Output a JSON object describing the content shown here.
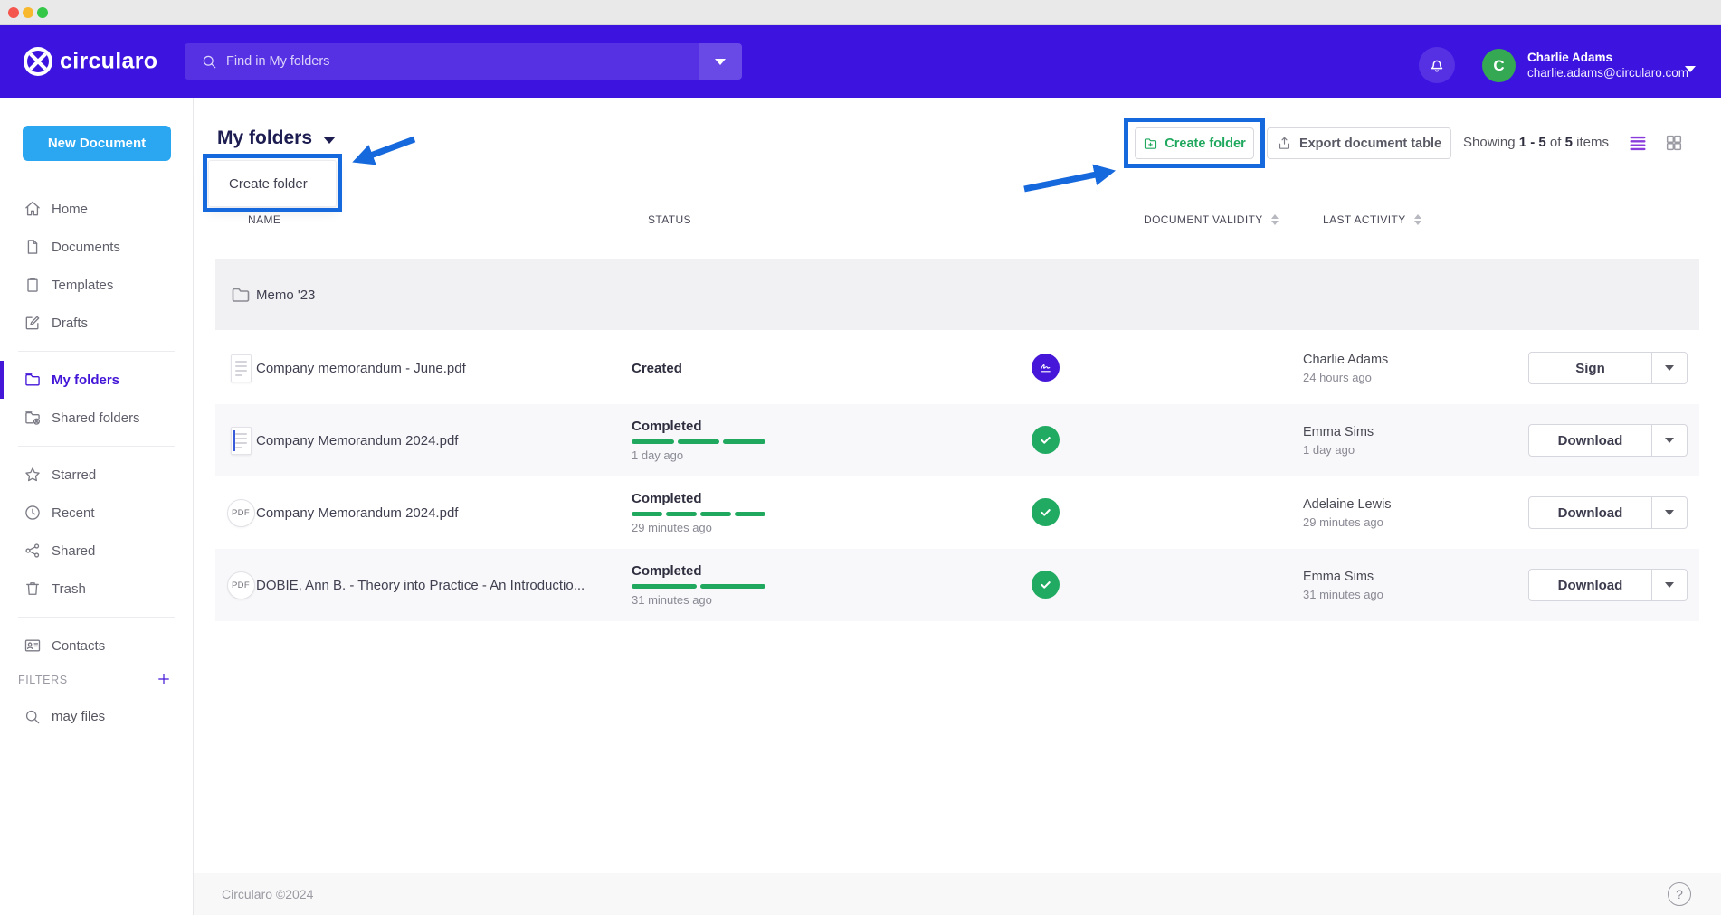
{
  "header": {
    "brand": "circularo",
    "search": {
      "placeholder": "Find in My folders"
    },
    "user": {
      "initial": "C",
      "name": "Charlie Adams",
      "email": "charlie.adams@circularo.com"
    }
  },
  "sidebar": {
    "new_document_label": "New Document",
    "items": [
      {
        "label": "Home",
        "icon": "home",
        "active": false,
        "divider_after": false
      },
      {
        "label": "Documents",
        "icon": "document",
        "active": false,
        "divider_after": false
      },
      {
        "label": "Templates",
        "icon": "template",
        "active": false,
        "divider_after": false
      },
      {
        "label": "Drafts",
        "icon": "draft",
        "active": false,
        "divider_after": true
      },
      {
        "label": "My folders",
        "icon": "folder",
        "active": true,
        "divider_after": false
      },
      {
        "label": "Shared folders",
        "icon": "shared-folder",
        "active": false,
        "divider_after": true
      },
      {
        "label": "Starred",
        "icon": "star",
        "active": false,
        "divider_after": false
      },
      {
        "label": "Recent",
        "icon": "clock",
        "active": false,
        "divider_after": false
      },
      {
        "label": "Shared",
        "icon": "share",
        "active": false,
        "divider_after": false
      },
      {
        "label": "Trash",
        "icon": "trash",
        "active": false,
        "divider_after": true
      },
      {
        "label": "Contacts",
        "icon": "contacts",
        "active": false,
        "divider_after": true
      }
    ],
    "filters_label": "FILTERS",
    "saved_filter": "may files"
  },
  "main": {
    "title": "My folders",
    "dropdown": {
      "item": "Create folder"
    },
    "toolbar": {
      "create_folder_label": "Create folder",
      "export_label": "Export document table",
      "showing": {
        "prefix": "Showing",
        "range": "1 - 5",
        "of": "of",
        "total": "5",
        "suffix": "items"
      }
    },
    "table": {
      "columns": [
        {
          "label": "NAME"
        },
        {
          "label": "STATUS"
        },
        {
          "label": "DOCUMENT VALIDITY"
        },
        {
          "label": "LAST ACTIVITY"
        }
      ],
      "folder_row": {
        "name": "Memo '23"
      },
      "rows": [
        {
          "icon": "doc-thumb",
          "name": "Company memorandum - June.pdf",
          "status": "Created",
          "progress_segments": 0,
          "status_time": "",
          "validity": "signature",
          "activity_name": "Charlie Adams",
          "activity_time": "24 hours ago",
          "action": "Sign"
        },
        {
          "icon": "doc-thumb-blue",
          "name": "Company Memorandum 2024.pdf",
          "status": "Completed",
          "progress_segments": 3,
          "status_time": "1 day ago",
          "validity": "check",
          "activity_name": "Emma Sims",
          "activity_time": "1 day ago",
          "action": "Download"
        },
        {
          "icon": "pdf-badge",
          "name": "Company Memorandum 2024.pdf",
          "status": "Completed",
          "progress_segments": 4,
          "status_time": "29 minutes ago",
          "validity": "check",
          "activity_name": "Adelaine Lewis",
          "activity_time": "29 minutes ago",
          "action": "Download"
        },
        {
          "icon": "pdf-badge",
          "name": "DOBIE, Ann B. - Theory into Practice - An Introductio...",
          "status": "Completed",
          "progress_segments": 2,
          "status_time": "31 minutes ago",
          "validity": "check",
          "activity_name": "Emma Sims",
          "activity_time": "31 minutes ago",
          "action": "Download"
        }
      ]
    }
  },
  "icons": {
    "pdf_label": "PDF"
  },
  "footer": {
    "copyright": "Circularo ©2024",
    "help_label": "?"
  },
  "colors": {
    "header_purple": "#3d13e0",
    "sidebar_active_purple": "#4316d8",
    "new_document_blue": "#2aa7f0",
    "success_green": "#1fa85e",
    "validity_purple": "#4617d9",
    "avatar_green": "#35a853",
    "annotation_blue": "#1668dd"
  }
}
